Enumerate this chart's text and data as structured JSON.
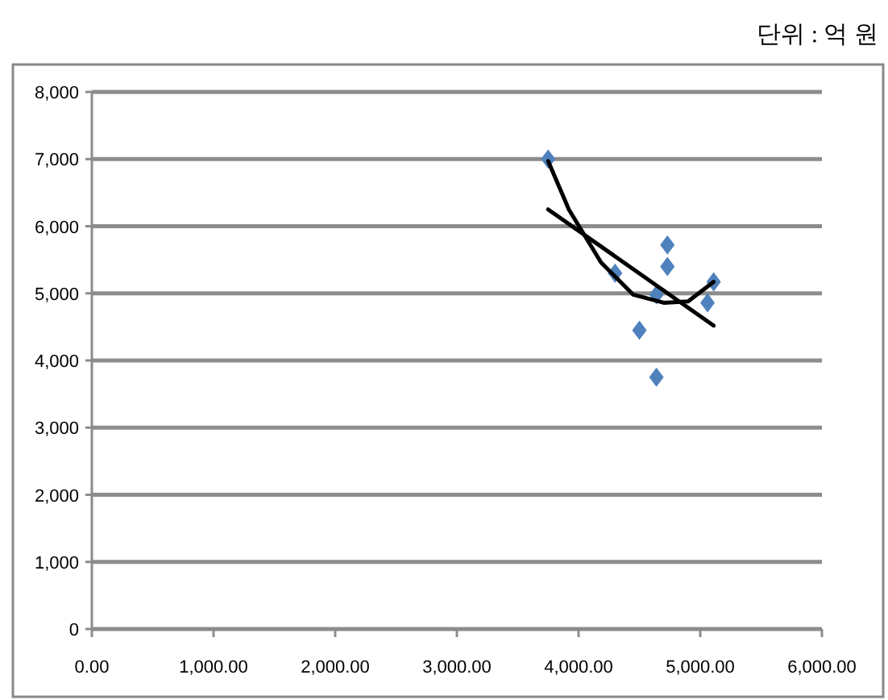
{
  "chart_data": {
    "type": "scatter",
    "annotations": [
      "단위 : 억 원"
    ],
    "series": [
      {
        "color": "#4f81bd",
        "marker": "diamond",
        "x": [
          3750,
          4300,
          4730,
          4730,
          4640,
          4500,
          4640,
          5060,
          5110
        ],
        "values": [
          7000,
          5300,
          5720,
          5400,
          4980,
          4450,
          3750,
          4860,
          5170
        ]
      },
      {
        "type": "line",
        "color": "#000000",
        "marker": "none",
        "x": [
          3750,
          5110
        ],
        "values": [
          6250,
          4520
        ]
      },
      {
        "type": "line",
        "color": "#000000",
        "marker": "none",
        "x": [
          3750,
          3920,
          4185,
          4450,
          4700,
          4900,
          5110
        ],
        "values": [
          6970,
          6250,
          5460,
          4980,
          4860,
          4880,
          5170
        ]
      }
    ],
    "xlim": [
      0,
      6000
    ],
    "xticks": [
      {
        "value": 0,
        "label": "0.00"
      },
      {
        "value": 1000,
        "label": "1,000.00"
      },
      {
        "value": 2000,
        "label": "2,000.00"
      },
      {
        "value": 3000,
        "label": "3,000.00"
      },
      {
        "value": 4000,
        "label": "4,000.00"
      },
      {
        "value": 5000,
        "label": "5,000.00"
      },
      {
        "value": 6000,
        "label": "6,000.00"
      }
    ],
    "ylim": [
      0,
      8000
    ],
    "yticks": [
      0,
      {
        "value": 1000,
        "label": "1,000"
      },
      {
        "value": 2000,
        "label": "2,000"
      },
      {
        "value": 3000,
        "label": "3,000"
      },
      {
        "value": 4000,
        "label": "4,000"
      },
      {
        "value": 5000,
        "label": "5,000"
      },
      {
        "value": 6000,
        "label": "6,000"
      },
      {
        "value": 7000,
        "label": "7,000"
      },
      {
        "value": 8000,
        "label": "8,000"
      }
    ],
    "grid": "y"
  }
}
